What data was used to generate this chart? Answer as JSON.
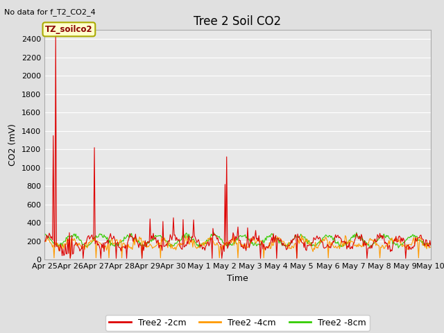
{
  "title": "Tree 2 Soil CO2",
  "no_data_label": "No data for f_T2_CO2_4",
  "xlabel": "Time",
  "ylabel": "CO2 (mV)",
  "ylim": [
    0,
    2500
  ],
  "yticks": [
    0,
    200,
    400,
    600,
    800,
    1000,
    1200,
    1400,
    1600,
    1800,
    2000,
    2200,
    2400
  ],
  "bg_color": "#e0e0e0",
  "plot_bg_color": "#e8e8e8",
  "grid_color": "#ffffff",
  "colors": {
    "2cm": "#dd0000",
    "4cm": "#ff9900",
    "8cm": "#33cc00"
  },
  "legend_labels": [
    "Tree2 -2cm",
    "Tree2 -4cm",
    "Tree2 -8cm"
  ],
  "annotation_text": "TZ_soilco2",
  "x_tick_labels": [
    "Apr 25",
    "Apr 26",
    "Apr 27",
    "Apr 28",
    "Apr 29",
    "Apr 30",
    "May 1",
    "May 2",
    "May 3",
    "May 4",
    "May 5",
    "May 6",
    "May 7",
    "May 8",
    "May 9",
    "May 10"
  ],
  "num_points": 480,
  "title_fontsize": 12,
  "label_fontsize": 9,
  "tick_fontsize": 8,
  "legend_fontsize": 9
}
